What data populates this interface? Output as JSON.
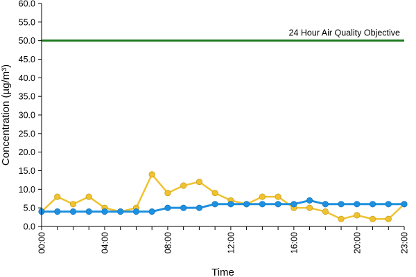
{
  "chart_data": {
    "type": "line",
    "title": "",
    "xlabel": "Time",
    "ylabel": "Concentration (µg/m³)",
    "ylim": [
      0,
      60
    ],
    "yticks": [
      "0.0",
      "5.0",
      "10.0",
      "15.0",
      "20.0",
      "25.0",
      "30.0",
      "35.0",
      "40.0",
      "45.0",
      "50.0",
      "55.0",
      "60.0"
    ],
    "xtick_labels": [
      "00:00",
      "04:00",
      "08:00",
      "12:00",
      "16:00",
      "20:00",
      "23:00"
    ],
    "xtick_hours": [
      0,
      4,
      8,
      12,
      16,
      20,
      23
    ],
    "x": [
      0,
      1,
      2,
      3,
      4,
      5,
      6,
      7,
      8,
      9,
      10,
      11,
      12,
      13,
      14,
      15,
      16,
      17,
      18,
      19,
      20,
      21,
      22,
      23
    ],
    "grid": false,
    "reference_line": {
      "value": 50,
      "label": "24 Hour Air Quality Objective",
      "color": "#1b7a1b"
    },
    "series": [
      {
        "color": "#f0c230",
        "values": [
          4,
          8,
          6,
          8,
          5,
          4,
          5,
          14,
          9,
          11,
          12,
          9,
          7,
          6,
          8,
          8,
          5,
          5,
          4,
          2,
          3,
          2,
          2,
          6
        ]
      },
      {
        "color": "#1e90e0",
        "values": [
          4,
          4,
          4,
          4,
          4,
          4,
          4,
          4,
          5,
          5,
          5,
          6,
          6,
          6,
          6,
          6,
          6,
          7,
          6,
          6,
          6,
          6,
          6,
          6
        ]
      }
    ]
  }
}
